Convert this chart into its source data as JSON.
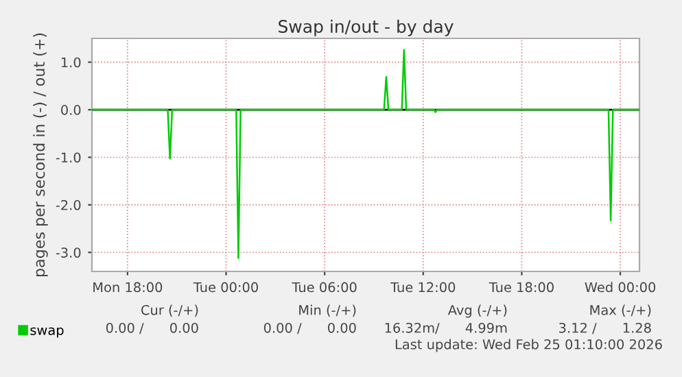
{
  "chart_data": {
    "type": "line",
    "title": "Swap in/out - by day",
    "ylabel": "pages per second in (-) / out (+)",
    "x": [
      "2026-02-23T15:50",
      "2026-02-23T20:27",
      "2026-02-23T20:35",
      "2026-02-23T20:43",
      "2026-02-24T00:37",
      "2026-02-24T00:45",
      "2026-02-24T00:53",
      "2026-02-24T09:37",
      "2026-02-24T09:45",
      "2026-02-24T09:53",
      "2026-02-24T10:42",
      "2026-02-24T10:50",
      "2026-02-24T10:58",
      "2026-02-24T12:40",
      "2026-02-24T12:45",
      "2026-02-24T12:50",
      "2026-02-24T23:17",
      "2026-02-24T23:25",
      "2026-02-24T23:33",
      "2026-02-25T01:10"
    ],
    "series": [
      {
        "name": "swap",
        "color": "#00cc00",
        "values": [
          0,
          0,
          -1.03,
          0,
          0,
          -3.12,
          0,
          0,
          0.69,
          0,
          0,
          1.26,
          0,
          0,
          -0.05,
          0,
          0,
          -2.33,
          0,
          0
        ]
      }
    ],
    "xlim": [
      "2026-02-23T15:50",
      "2026-02-25T01:10"
    ],
    "xticks": [
      {
        "value": "2026-02-23T18:00",
        "label": "Mon 18:00"
      },
      {
        "value": "2026-02-24T00:00",
        "label": "Tue 00:00"
      },
      {
        "value": "2026-02-24T06:00",
        "label": "Tue 06:00"
      },
      {
        "value": "2026-02-24T12:00",
        "label": "Tue 12:00"
      },
      {
        "value": "2026-02-24T18:00",
        "label": "Tue 18:00"
      },
      {
        "value": "2026-02-25T00:00",
        "label": "Wed 00:00"
      }
    ],
    "ylim": [
      -3.4,
      1.5
    ],
    "yticks": [
      {
        "value": -3,
        "label": "-3.0"
      },
      {
        "value": -2,
        "label": "-2.0"
      },
      {
        "value": -1,
        "label": "-1.0"
      },
      {
        "value": 0,
        "label": "0.0"
      },
      {
        "value": 1,
        "label": "1.0"
      }
    ],
    "ref_lines": [
      {
        "axis": "y",
        "value": 0,
        "color": "#000000"
      }
    ],
    "grid": true,
    "legend": "bottom",
    "marker": "none",
    "line_style": "solid",
    "annotations": [
      "Cur (-/+)",
      "Min (-/+)",
      "Avg (-/+)",
      "Max (-/+)",
      "0.00 /      0.00",
      "0.00 /      0.00",
      "16.32m/      4.99m",
      "3.12 /      1.28",
      "Last update: Wed Feb 25 01:10:00 2026"
    ]
  }
}
